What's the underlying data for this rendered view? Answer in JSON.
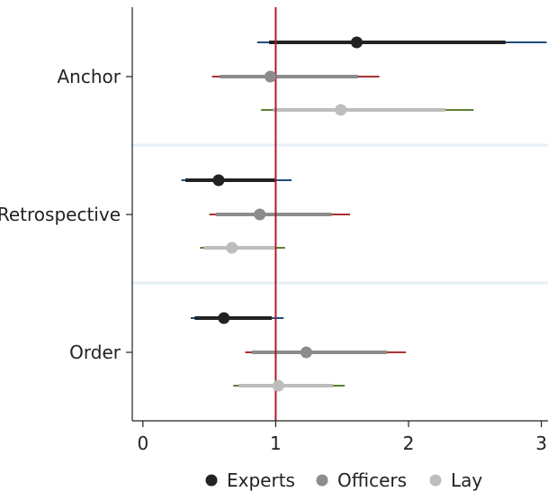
{
  "chart_data": {
    "type": "scatter",
    "subtype": "coefficient-plot-with-confidence-intervals",
    "title": "",
    "xlabel": "",
    "ylabel": "",
    "xlim": [
      -0.08,
      3.05
    ],
    "xticks": [
      0,
      1,
      2,
      3
    ],
    "reference_line_x": 1,
    "reference_line_color": "#b2182b",
    "grid": false,
    "legend_position": "bottom",
    "categories": [
      "Anchor",
      "Retrospective",
      "Order"
    ],
    "series": [
      {
        "name": "Experts",
        "color": "#222222",
        "outer_ci_color": "#1f4e79",
        "points": [
          {
            "category": "Anchor",
            "estimate": 1.61,
            "ci_inner": [
              0.95,
              2.73
            ],
            "ci_outer": [
              0.86,
              3.04
            ]
          },
          {
            "category": "Retrospective",
            "estimate": 0.57,
            "ci_inner": [
              0.32,
              1.0
            ],
            "ci_outer": [
              0.29,
              1.12
            ]
          },
          {
            "category": "Order",
            "estimate": 0.61,
            "ci_inner": [
              0.39,
              0.97
            ],
            "ci_outer": [
              0.36,
              1.06
            ]
          }
        ]
      },
      {
        "name": "Officers",
        "color": "#8c8c8c",
        "outer_ci_color": "#a83232",
        "points": [
          {
            "category": "Anchor",
            "estimate": 0.96,
            "ci_inner": [
              0.58,
              1.62
            ],
            "ci_outer": [
              0.52,
              1.78
            ]
          },
          {
            "category": "Retrospective",
            "estimate": 0.88,
            "ci_inner": [
              0.55,
              1.42
            ],
            "ci_outer": [
              0.5,
              1.56
            ]
          },
          {
            "category": "Order",
            "estimate": 1.23,
            "ci_inner": [
              0.82,
              1.84
            ],
            "ci_outer": [
              0.77,
              1.98
            ]
          }
        ]
      },
      {
        "name": "Lay",
        "color": "#bdbdbd",
        "outer_ci_color": "#5b7f2e",
        "points": [
          {
            "category": "Anchor",
            "estimate": 1.49,
            "ci_inner": [
              0.98,
              2.28
            ],
            "ci_outer": [
              0.89,
              2.49
            ]
          },
          {
            "category": "Retrospective",
            "estimate": 0.67,
            "ci_inner": [
              0.46,
              1.0
            ],
            "ci_outer": [
              0.43,
              1.07
            ]
          },
          {
            "category": "Order",
            "estimate": 1.02,
            "ci_inner": [
              0.72,
              1.43
            ],
            "ci_outer": [
              0.68,
              1.52
            ]
          }
        ]
      }
    ]
  }
}
